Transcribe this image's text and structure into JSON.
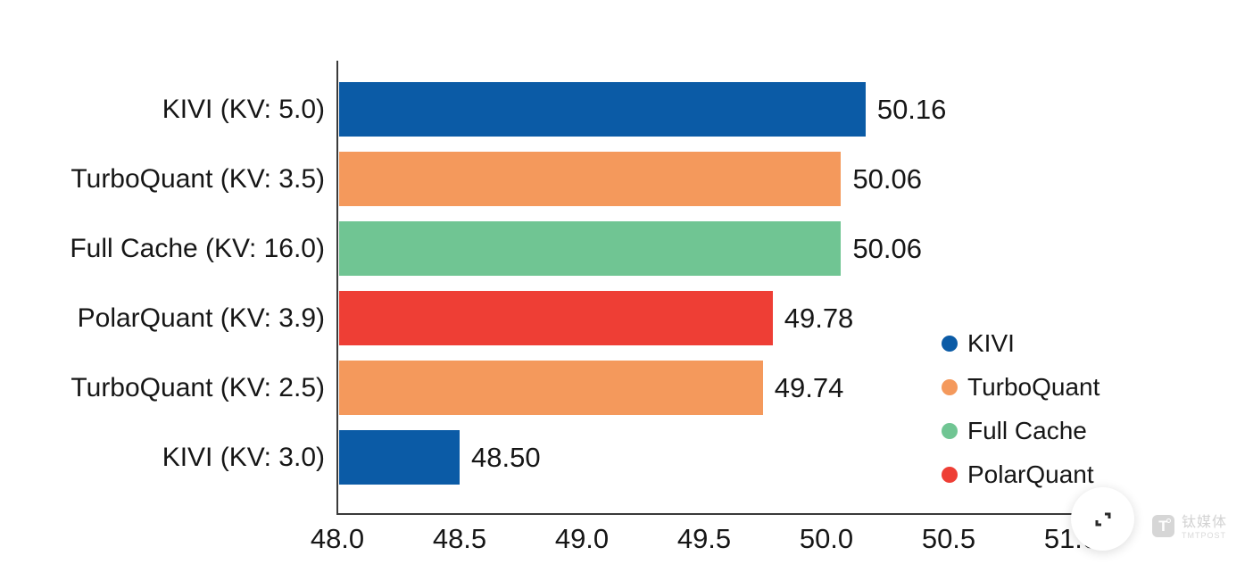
{
  "chart_data": {
    "type": "bar",
    "orientation": "horizontal",
    "title": "",
    "xlabel": "",
    "ylabel": "",
    "xlim": [
      48.0,
      51.0
    ],
    "grid": false,
    "bars": [
      {
        "category": "KIVI (KV: 5.0)",
        "series": "KIVI",
        "value": 50.16,
        "label": "50.16"
      },
      {
        "category": "TurboQuant (KV: 3.5)",
        "series": "TurboQuant",
        "value": 50.06,
        "label": "50.06"
      },
      {
        "category": "Full Cache (KV: 16.0)",
        "series": "Full Cache",
        "value": 50.06,
        "label": "50.06"
      },
      {
        "category": "PolarQuant (KV: 3.9)",
        "series": "PolarQuant",
        "value": 49.78,
        "label": "49.78"
      },
      {
        "category": "TurboQuant (KV: 2.5)",
        "series": "TurboQuant",
        "value": 49.74,
        "label": "49.74"
      },
      {
        "category": "KIVI (KV: 3.0)",
        "series": "KIVI",
        "value": 48.5,
        "label": "48.50"
      }
    ],
    "x_ticks": [
      {
        "value": 48.0,
        "label": "48.0"
      },
      {
        "value": 48.5,
        "label": "48.5"
      },
      {
        "value": 49.0,
        "label": "49.0"
      },
      {
        "value": 49.5,
        "label": "49.5"
      },
      {
        "value": 50.0,
        "label": "50.0"
      },
      {
        "value": 50.5,
        "label": "50.5"
      },
      {
        "value": 51.0,
        "label": "51.0"
      }
    ],
    "legend": {
      "position": "right-middle",
      "entries": [
        {
          "label": "KIVI",
          "color": "#0b5ba6"
        },
        {
          "label": "TurboQuant",
          "color": "#f4995c"
        },
        {
          "label": "Full Cache",
          "color": "#70c593"
        },
        {
          "label": "PolarQuant",
          "color": "#ee3e35"
        }
      ]
    }
  },
  "colors": {
    "background": "#ffffff",
    "axis": "#3a3a3a",
    "text": "#161616",
    "watermark_gray": "#d6d6d6"
  },
  "overlay": {
    "expand_button": {
      "icon": "expand-arrows-icon"
    },
    "watermark": {
      "logo": "T",
      "brand": "钛媒体",
      "sub": "TMTPOST"
    }
  }
}
